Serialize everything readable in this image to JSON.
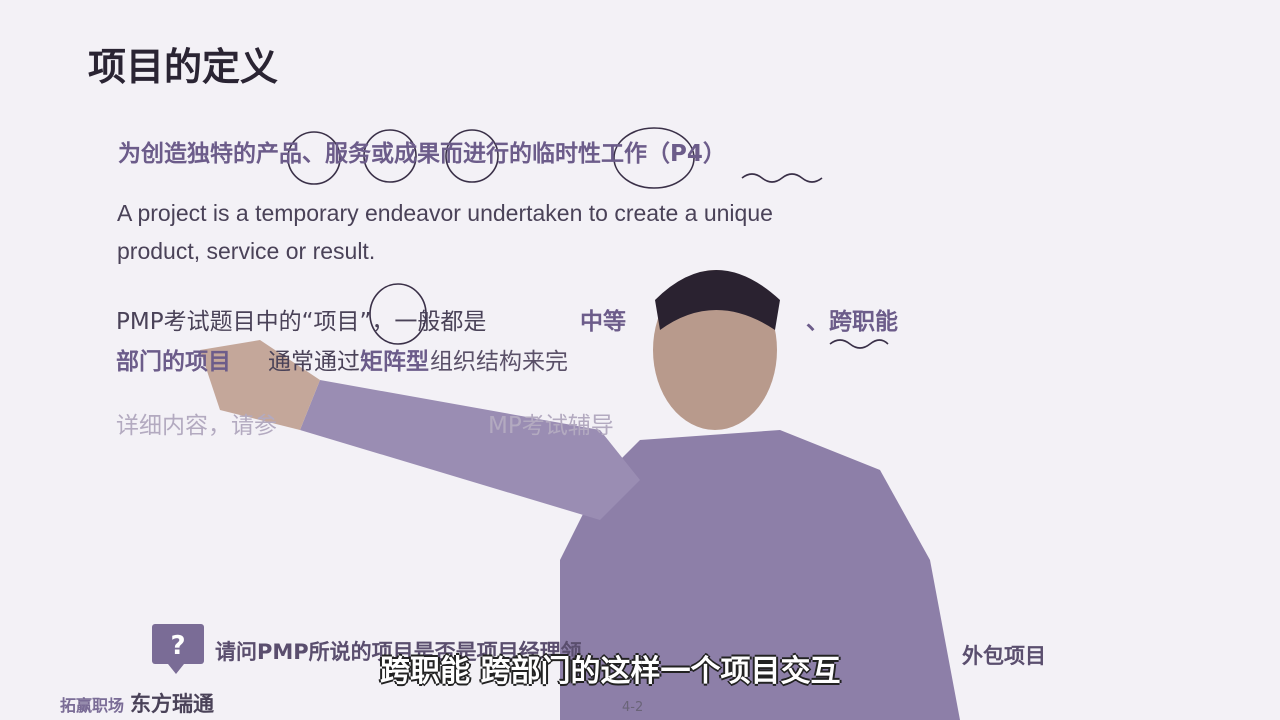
{
  "header": {
    "title": "项目的定义"
  },
  "definition": "为创造独特的产品、服务或成果而进行的临时性工作（P4）",
  "english": [
    "A project is a temporary endeavor undertaken to create a unique",
    "product, service or result."
  ],
  "note": {
    "part1": "PMP考试题目中的“项目”，一般都是",
    "part2": "中等",
    "part3": "、跨职能",
    "part4": "部门的项目",
    "part5": "通常通过",
    "part6": "矩阵型",
    "part7": "组织结构来完"
  },
  "detail": {
    "part1": "详细内容，请参",
    "part2": "MP考试辅导"
  },
  "question": {
    "part1": "请问PMP所说的项目是否是项目经理领",
    "part2": "外包项目"
  },
  "subtitle": "跨职能 跨部门的这样一个项目交互",
  "footer": {
    "logo1": "拓赢职场",
    "logo2": "东方瑞通",
    "page": "4-2"
  }
}
